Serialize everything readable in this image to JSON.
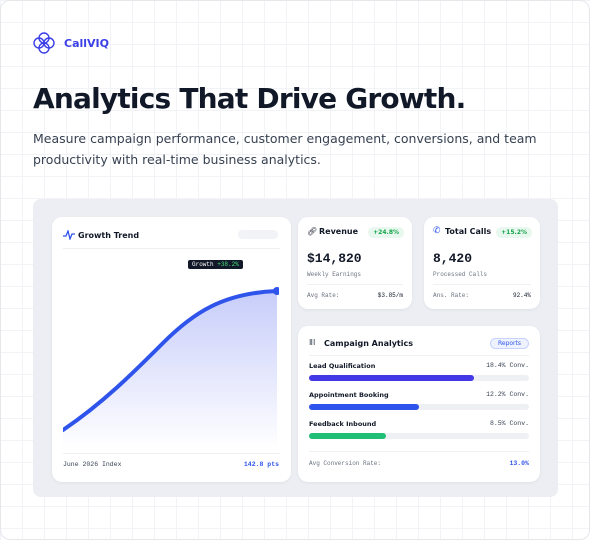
{
  "brand": "CallVIQ",
  "headline": "Analytics That Drive Growth.",
  "description": "Measure campaign performance, customer engagement, conversions, and team productivity with real-time business analytics.",
  "growth": {
    "title": "Growth Trend",
    "badge_label": "Growth",
    "badge_value": "+38.2%",
    "footer_left": "June 2026 Index",
    "footer_right": "142.8 pts"
  },
  "revenue": {
    "title": "Revenue",
    "change": "+24.8%",
    "value": "$14,820",
    "caption": "Weekly Earnings",
    "stat_label": "Avg Rate:",
    "stat_value": "$3.85/m"
  },
  "calls": {
    "title": "Total Calls",
    "change": "+15.2%",
    "value": "8,420",
    "caption": "Processed Calls",
    "stat_label": "Ans. Rate:",
    "stat_value": "92.4%"
  },
  "campaign": {
    "title": "Campaign Analytics",
    "button": "Reports",
    "rows": [
      {
        "label": "Lead Qualification",
        "value_label": "18.4% Conv.",
        "progress": 75,
        "color": "#4338e6"
      },
      {
        "label": "Appointment Booking",
        "value_label": "12.2% Conv.",
        "progress": 50,
        "color": "#2f54eb"
      },
      {
        "label": "Feedback Inbound",
        "value_label": "8.5% Conv.",
        "progress": 35,
        "color": "#1fbf75"
      }
    ],
    "footer_label": "Avg Conversion Rate:",
    "footer_value": "13.0%"
  }
}
